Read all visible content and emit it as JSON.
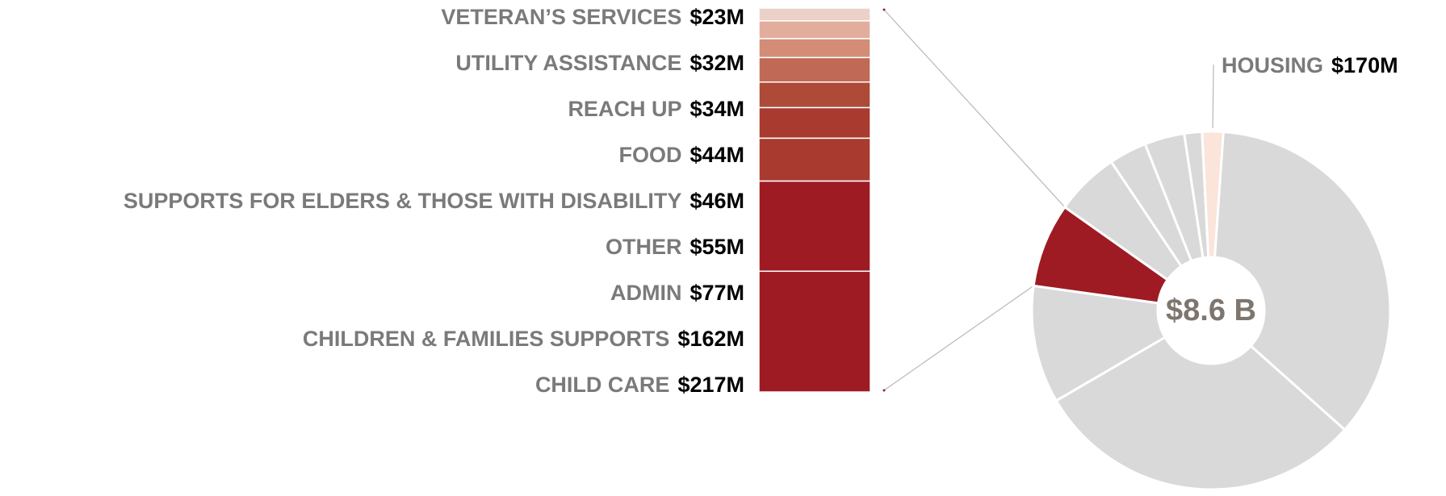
{
  "chart_data": [
    {
      "type": "bar",
      "stacked": true,
      "orientation": "vertical-stack",
      "unit": "$M",
      "categories": [
        "VETERAN’S SERVICES",
        "UTILITY ASSISTANCE",
        "REACH UP",
        "FOOD",
        "SUPPORTS FOR ELDERS & THOSE WITH DISABILITY",
        "OTHER",
        "ADMIN",
        "CHILDREN & FAMILIES SUPPORTS",
        "CHILD CARE"
      ],
      "values": [
        23,
        32,
        34,
        44,
        46,
        55,
        77,
        162,
        217
      ],
      "value_labels": [
        "$23M",
        "$32M",
        "$34M",
        "$44M",
        "$46M",
        "$55M",
        "$77M",
        "$162M",
        "$217M"
      ],
      "colors": [
        "#ecd1c8",
        "#e2ad9d",
        "#d38d77",
        "#c06956",
        "#ad4a38",
        "#a83a2f",
        "#a83a2f",
        "#9e1b23",
        "#9e1b23"
      ]
    },
    {
      "type": "pie",
      "style": "donut",
      "total_label": "$8.6 B",
      "labeled_slices": [
        {
          "label": "HOUSING",
          "value_label": "$170M",
          "value": 170,
          "color": "#fbe4da"
        }
      ],
      "highlighted_slice_color": "#9e1b23",
      "other_slice_color": "#d9d9d9",
      "slice_order_clockwise_from_top": [
        "large",
        "large",
        "medium",
        "highlighted",
        "small",
        "small",
        "small",
        "small",
        "housing"
      ],
      "slice_share": [
        0.366,
        0.3,
        0.106,
        0.076,
        0.058,
        0.034,
        0.036,
        0.016,
        0.019
      ]
    }
  ]
}
